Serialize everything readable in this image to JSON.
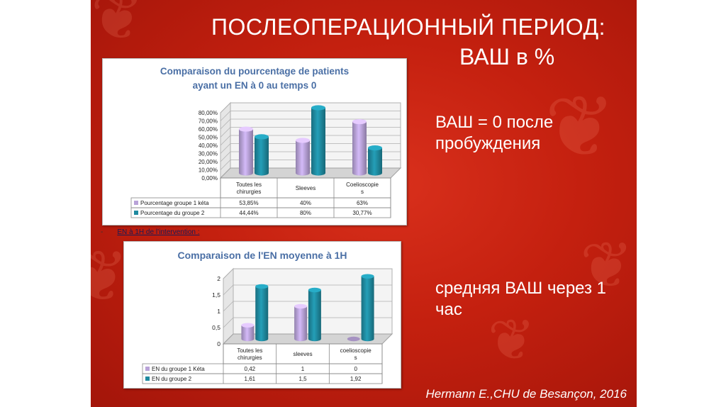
{
  "slide": {
    "title_line1": "ПОСЛЕОПЕРАЦИОННЫЙ ПЕРИОД:",
    "title_line2": "ВАШ в %",
    "note1": "ВАШ = 0 после пробуждения",
    "note2": "средняя ВАШ через 1 час",
    "subnote": "EN à 1H de l’intervention :",
    "subnote_dash": "-",
    "citation": "Hermann E.,CHU de Besançon, 2016",
    "colors": {
      "background": "#c4200f",
      "series1": "#b8a2d8",
      "series2": "#1f8aa0"
    }
  },
  "chart_data": [
    {
      "type": "bar",
      "title": "Comparaison du pourcentage de patients ayant un EN à 0 au temps 0",
      "categories": [
        "Toutes les chirurgies",
        "Sleeves",
        "Coelioscopie s"
      ],
      "series": [
        {
          "name": "Pourcentage groupe 1 kéta",
          "values": [
            53.85,
            40,
            63
          ],
          "labels": [
            "53,85%",
            "40%",
            "63%"
          ]
        },
        {
          "name": "Pourcentage du groupe 2",
          "values": [
            44.44,
            80,
            30.77
          ],
          "labels": [
            "44,44%",
            "80%",
            "30,77%"
          ]
        }
      ],
      "ylim": [
        0,
        80
      ],
      "yticks": [
        "0,00%",
        "10,00%",
        "20,00%",
        "30,00%",
        "40,00%",
        "50,00%",
        "60,00%",
        "70,00%",
        "80,00%"
      ],
      "grid": true,
      "legend": "data table below chart"
    },
    {
      "type": "bar",
      "title": "Comparaison de l'EN moyenne à 1H",
      "categories": [
        "Toutes les chirurgies",
        "sleeves",
        "coelioscopie s"
      ],
      "series": [
        {
          "name": "EN du groupe 1 Kéta",
          "values": [
            0.42,
            1,
            0
          ],
          "labels": [
            "0,42",
            "1",
            "0"
          ]
        },
        {
          "name": "EN du groupe 2",
          "values": [
            1.61,
            1.5,
            1.92
          ],
          "labels": [
            "1,61",
            "1,5",
            "1,92"
          ]
        }
      ],
      "ylim": [
        0,
        2
      ],
      "yticks": [
        "0",
        "0,5",
        "1",
        "1,5",
        "2"
      ],
      "grid": true,
      "legend": "data table below chart"
    }
  ]
}
